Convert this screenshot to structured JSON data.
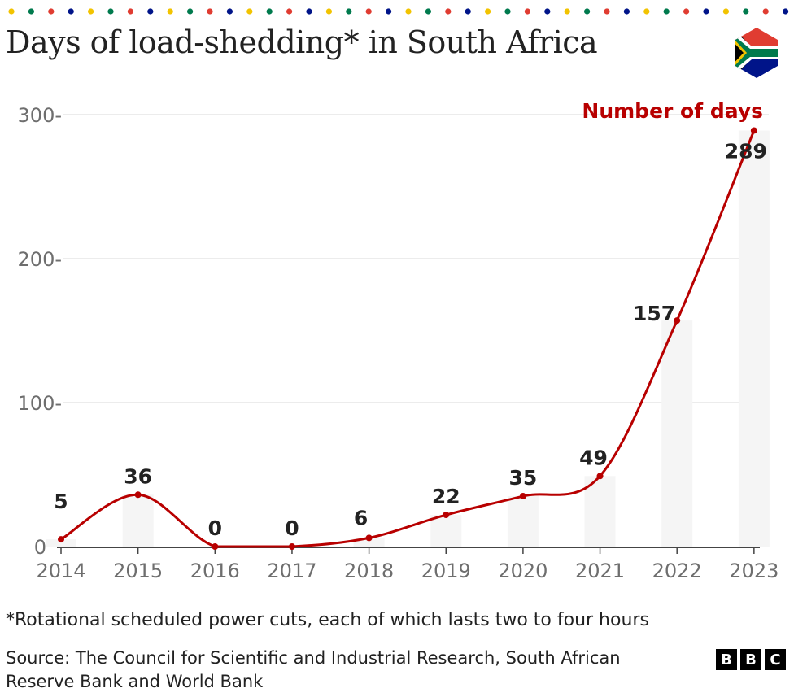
{
  "title": "Days of load-shedding* in South Africa",
  "footnote": "*Rotational scheduled power cuts, each of which lasts two to four hours",
  "source": "Source: The Council for Scientific and Industrial Research, South African Reserve Bank and World Bank",
  "logo": "BBC",
  "colors": {
    "line": "#b80000",
    "bar": "#f5f5f5",
    "dots": [
      "#f2c300",
      "#007a4d",
      "#e03c31",
      "#001489"
    ]
  },
  "icons": {
    "flag": "south-africa-flag-icon"
  },
  "chart_data": {
    "type": "line",
    "categories": [
      "2014",
      "2015",
      "2016",
      "2017",
      "2018",
      "2019",
      "2020",
      "2021",
      "2022",
      "2023"
    ],
    "series": [
      {
        "name": "Number of days",
        "values": [
          5,
          36,
          0,
          0,
          6,
          22,
          35,
          49,
          157,
          289
        ]
      }
    ],
    "yticks": [
      "0",
      "100-",
      "200-",
      "300-"
    ],
    "ylim": [
      0,
      300
    ],
    "grid": true,
    "legend": "top-right"
  }
}
